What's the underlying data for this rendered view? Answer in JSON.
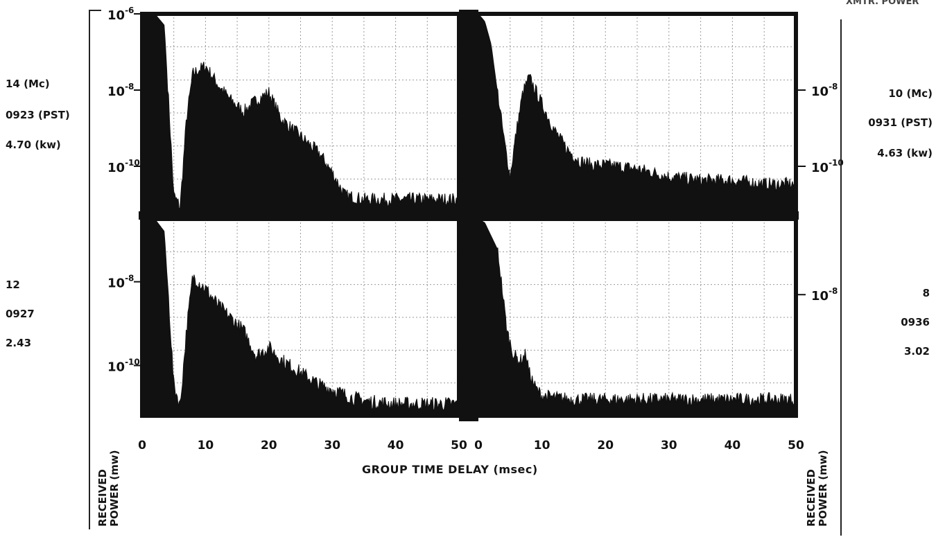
{
  "figure": {
    "top_right_label": "XMTR. POWER",
    "x_axis_title": "GROUP TIME DELAY (msec)",
    "y_axis_title_left": [
      "RECEIVED",
      "POWER (mw)"
    ],
    "y_axis_title_right": [
      "RECEIVED",
      "POWER (mw)"
    ]
  },
  "panel_labels": {
    "top_left": {
      "freq": "14 (Mc)",
      "time": "0923 (PST)",
      "power": "4.70 (kw)"
    },
    "top_right": {
      "freq": "10 (Mc)",
      "time": "0931 (PST)",
      "power": "4.63 (kw)"
    },
    "bottom_left": {
      "freq": "12",
      "time": "0927",
      "power": "2.43"
    },
    "bottom_right": {
      "freq": "8",
      "time": "0936",
      "power": "3.02"
    }
  },
  "colors": {
    "ink": "#111111",
    "grid": "#9a9a9a",
    "paper": "#ffffff"
  },
  "chart_data": [
    {
      "panel": "top-left",
      "type": "area",
      "x_unit": "msec",
      "xlim": [
        0,
        50
      ],
      "y_scale": "log",
      "y_ticks": [
        {
          "value": "1e-6",
          "label": "10-6"
        },
        {
          "value": "1e-8",
          "label": "10-8"
        },
        {
          "value": "1e-10",
          "label": "10-10"
        }
      ],
      "x": [
        0,
        2,
        3.5,
        5,
        6,
        7,
        8,
        9,
        10,
        12,
        14,
        16,
        18,
        20,
        22,
        24,
        26,
        28,
        30,
        32,
        35,
        40,
        45,
        50
      ],
      "envelope_log10": [
        -6,
        -6,
        -6.3,
        -10.8,
        -11.1,
        -8.8,
        -7.6,
        -7.5,
        -7.4,
        -7.9,
        -8.3,
        -8.6,
        -8.3,
        -8.1,
        -8.8,
        -9.1,
        -9.4,
        -9.7,
        -10.2,
        -10.8,
        -10.9,
        -10.9,
        -10.9,
        -10.9
      ],
      "grid": true
    },
    {
      "panel": "top-right",
      "type": "area",
      "x_unit": "msec",
      "xlim": [
        0,
        50
      ],
      "y_scale": "log",
      "y_ticks": [
        {
          "value": "1e-8",
          "label": "10-8"
        },
        {
          "value": "1e-10",
          "label": "10-10"
        }
      ],
      "x": [
        0,
        1,
        2,
        4,
        5,
        6,
        7,
        8,
        10,
        12,
        14,
        16,
        18,
        20,
        25,
        30,
        35,
        40,
        45,
        50
      ],
      "envelope_log10": [
        -6,
        -6.2,
        -6.8,
        -9.3,
        -10.3,
        -9.1,
        -8.1,
        -7.7,
        -8.4,
        -9.1,
        -9.6,
        -9.9,
        -10.0,
        -10.0,
        -10.1,
        -10.3,
        -10.4,
        -10.4,
        -10.5,
        -10.5
      ],
      "grid": true
    },
    {
      "panel": "bottom-left",
      "type": "area",
      "x_unit": "msec",
      "x_ticks": [
        0,
        10,
        20,
        30,
        40,
        50
      ],
      "xlim": [
        0,
        50
      ],
      "y_scale": "log",
      "y_ticks": [
        {
          "value": "1e-8",
          "label": "10-8"
        },
        {
          "value": "1e-10",
          "label": "10-10"
        }
      ],
      "x": [
        0,
        2,
        3.5,
        5,
        6,
        7,
        8,
        10,
        12,
        14,
        16,
        18,
        20,
        22,
        24,
        26,
        28,
        30,
        33,
        36,
        40,
        45,
        50
      ],
      "envelope_log10": [
        -6.5,
        -6.5,
        -6.8,
        -10.5,
        -11.0,
        -9.2,
        -7.9,
        -8.2,
        -8.6,
        -8.9,
        -9.2,
        -9.8,
        -9.6,
        -9.9,
        -10.1,
        -10.3,
        -10.5,
        -10.6,
        -10.8,
        -10.9,
        -10.95,
        -10.95,
        -10.95
      ],
      "grid": true
    },
    {
      "panel": "bottom-right",
      "type": "area",
      "x_unit": "msec",
      "x_ticks": [
        0,
        10,
        20,
        30,
        40,
        50
      ],
      "xlim": [
        0,
        50
      ],
      "y_scale": "log",
      "y_ticks": [
        {
          "value": "1e-8",
          "label": "10-8"
        }
      ],
      "x": [
        0,
        1,
        3,
        4.5,
        5.5,
        6.5,
        7.5,
        8,
        9,
        10,
        12,
        15,
        20,
        30,
        40,
        50
      ],
      "envelope_log10": [
        -6,
        -6.1,
        -6.8,
        -9.0,
        -9.6,
        -9.8,
        -9.6,
        -10.1,
        -10.5,
        -10.7,
        -10.75,
        -10.8,
        -10.8,
        -10.8,
        -10.8,
        -10.8
      ],
      "grid": true
    }
  ]
}
